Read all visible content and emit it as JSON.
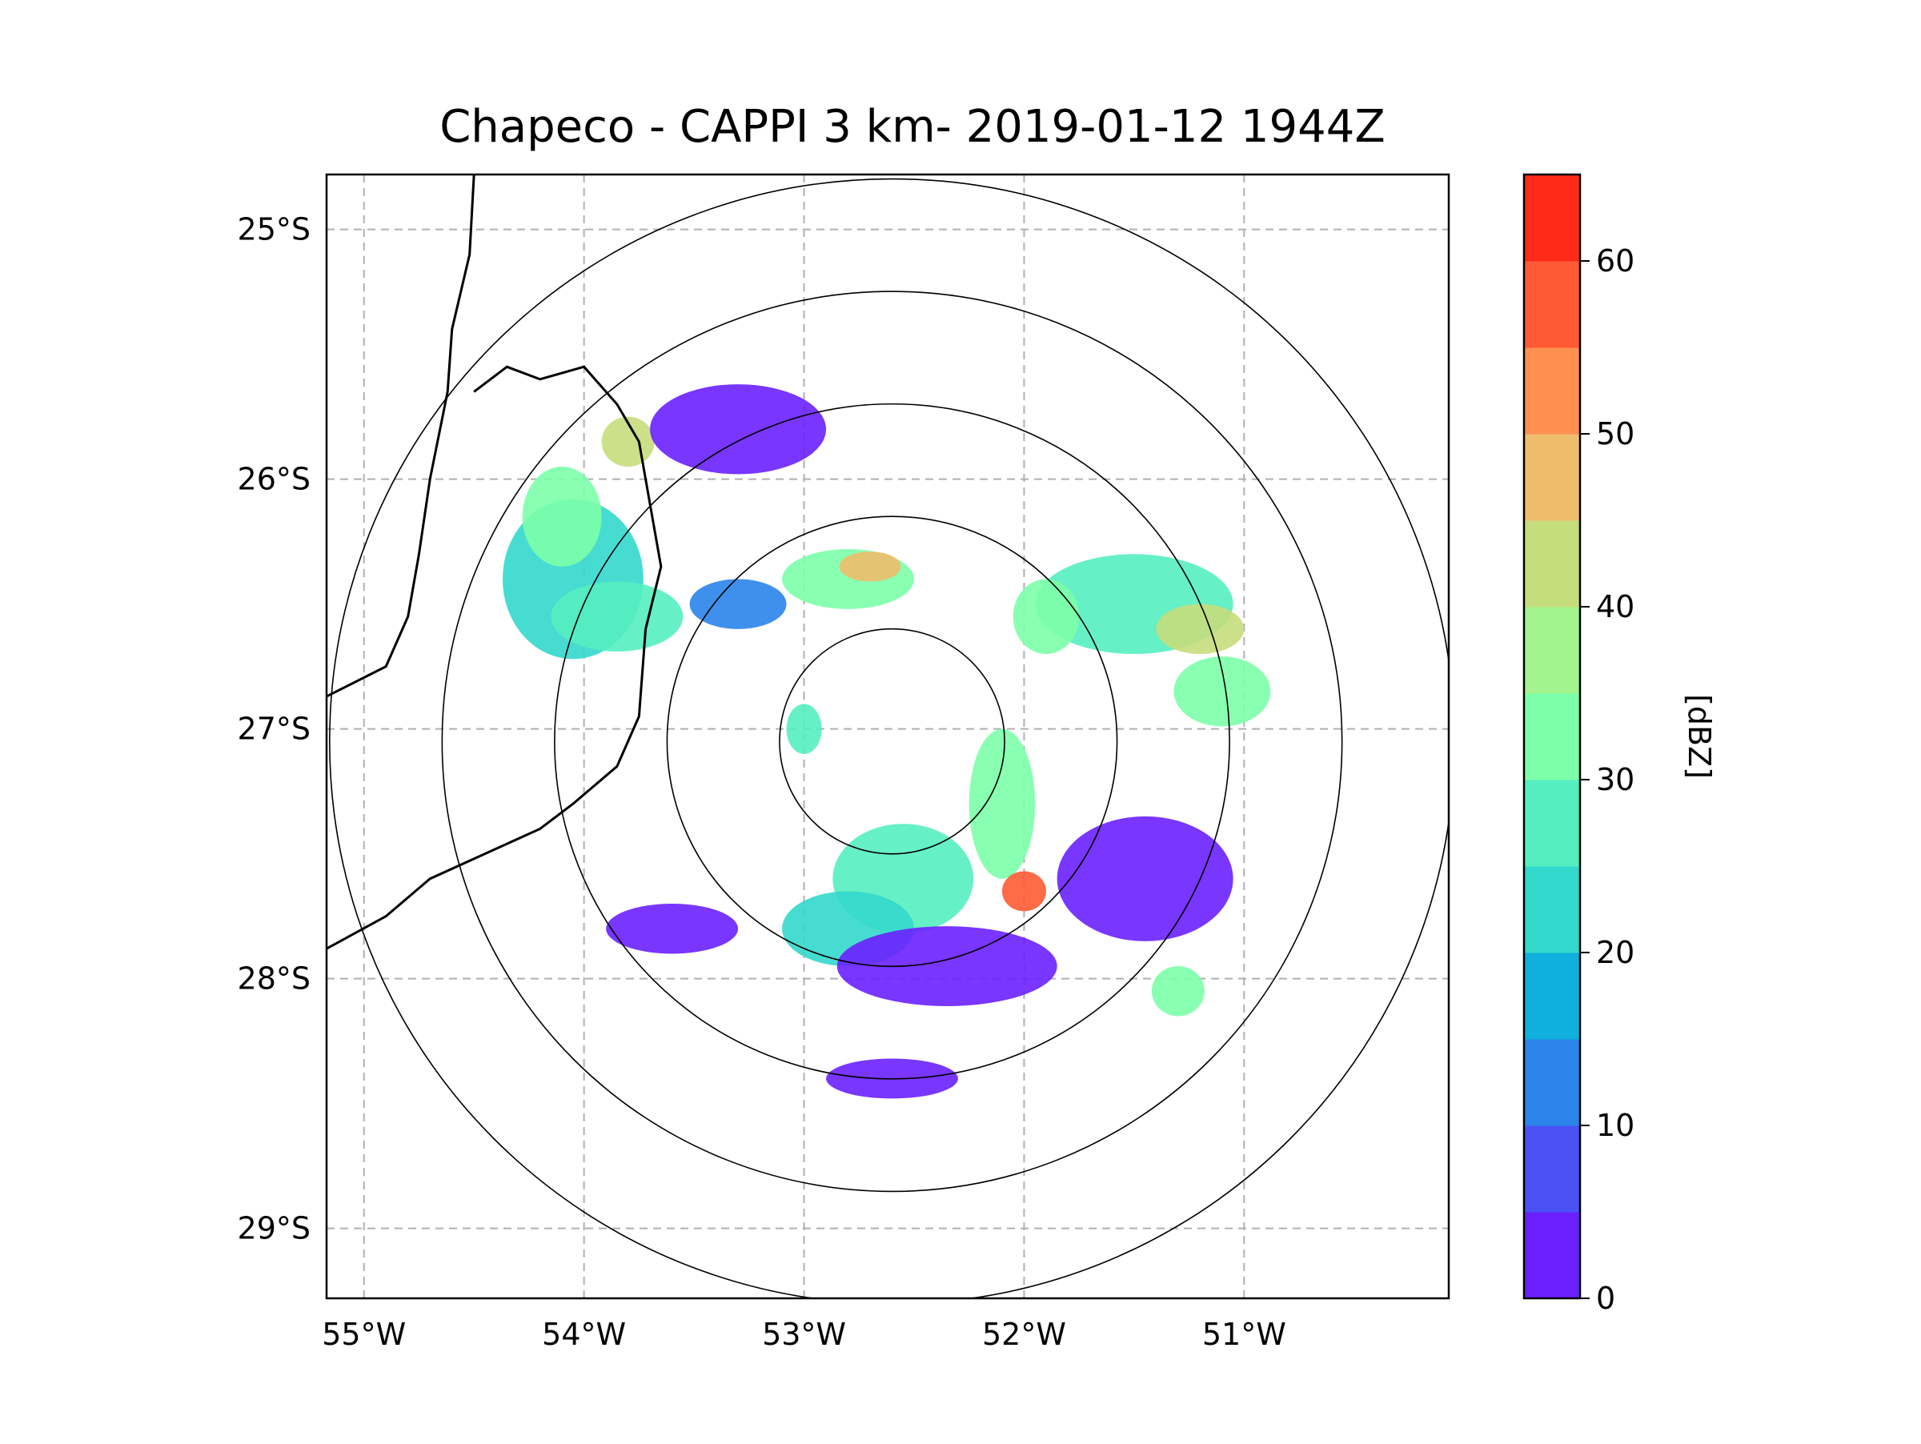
{
  "chart_data": {
    "type": "heatmap",
    "title": "Chapeco - CAPPI 3 km- 2019-01-12 1944Z",
    "radar_site": "Chapeco",
    "product": "CAPPI 3 km",
    "timestamp": "2019-01-12 1944Z",
    "x_ticks": [
      {
        "value": -55,
        "label": "55°W"
      },
      {
        "value": -54,
        "label": "54°W"
      },
      {
        "value": -53,
        "label": "53°W"
      },
      {
        "value": -52,
        "label": "52°W"
      },
      {
        "value": -51,
        "label": "51°W"
      }
    ],
    "y_ticks": [
      {
        "value": -25,
        "label": "25°S"
      },
      {
        "value": -26,
        "label": "26°S"
      },
      {
        "value": -27,
        "label": "27°S"
      },
      {
        "value": -28,
        "label": "28°S"
      },
      {
        "value": -29,
        "label": "29°S"
      }
    ],
    "xlim": [
      -55.17,
      -50.07
    ],
    "ylim": [
      -29.28,
      -24.78
    ],
    "grid": true,
    "radar_center": {
      "lon": -52.6,
      "lat": -27.05
    },
    "range_rings_km": [
      50,
      100,
      150,
      200,
      250
    ],
    "colorbar": {
      "label": "[dBZ]",
      "min": 0,
      "max": 65,
      "step": 5,
      "ticks": [
        0,
        10,
        20,
        30,
        40,
        50,
        60
      ],
      "tick_labels": [
        "0",
        "10",
        "20",
        "30",
        "40",
        "50",
        "60"
      ],
      "colors": [
        "#6a20ff",
        "#4a52f5",
        "#2a84ea",
        "#10b0dd",
        "#33d8cc",
        "#55eec0",
        "#7cffa8",
        "#a2f48e",
        "#c6dd7c",
        "#eebd6c",
        "#ff9050",
        "#ff5a33",
        "#ff2a18"
      ]
    },
    "echo_cells": [
      {
        "lon": -54.05,
        "lat": -26.4,
        "rlon": 0.32,
        "rlat": 0.32,
        "dbz": 22
      },
      {
        "lon": -54.1,
        "lat": -26.15,
        "rlon": 0.18,
        "rlat": 0.2,
        "dbz": 34
      },
      {
        "lon": -53.8,
        "lat": -25.85,
        "rlon": 0.12,
        "rlat": 0.1,
        "dbz": 40
      },
      {
        "lon": -53.85,
        "lat": -26.55,
        "rlon": 0.3,
        "rlat": 0.14,
        "dbz": 28
      },
      {
        "lon": -53.3,
        "lat": -26.5,
        "rlon": 0.22,
        "rlat": 0.1,
        "dbz": 12
      },
      {
        "lon": -53.3,
        "lat": -25.8,
        "rlon": 0.4,
        "rlat": 0.18,
        "dbz": 3
      },
      {
        "lon": -52.8,
        "lat": -26.4,
        "rlon": 0.3,
        "rlat": 0.12,
        "dbz": 30
      },
      {
        "lon": -52.7,
        "lat": -26.35,
        "rlon": 0.14,
        "rlat": 0.06,
        "dbz": 45
      },
      {
        "lon": -51.5,
        "lat": -26.5,
        "rlon": 0.45,
        "rlat": 0.2,
        "dbz": 27
      },
      {
        "lon": -51.2,
        "lat": -26.6,
        "rlon": 0.2,
        "rlat": 0.1,
        "dbz": 42
      },
      {
        "lon": -51.1,
        "lat": -26.85,
        "rlon": 0.22,
        "rlat": 0.14,
        "dbz": 30
      },
      {
        "lon": -51.9,
        "lat": -26.55,
        "rlon": 0.15,
        "rlat": 0.15,
        "dbz": 32
      },
      {
        "lon": -52.1,
        "lat": -27.3,
        "rlon": 0.15,
        "rlat": 0.3,
        "dbz": 30
      },
      {
        "lon": -52.0,
        "lat": -27.65,
        "rlon": 0.1,
        "rlat": 0.08,
        "dbz": 55
      },
      {
        "lon": -52.55,
        "lat": -27.6,
        "rlon": 0.32,
        "rlat": 0.22,
        "dbz": 25
      },
      {
        "lon": -52.8,
        "lat": -27.8,
        "rlon": 0.3,
        "rlat": 0.15,
        "dbz": 22
      },
      {
        "lon": -52.35,
        "lat": -27.95,
        "rlon": 0.5,
        "rlat": 0.16,
        "dbz": 3
      },
      {
        "lon": -51.45,
        "lat": -27.6,
        "rlon": 0.4,
        "rlat": 0.25,
        "dbz": 4
      },
      {
        "lon": -51.3,
        "lat": -28.05,
        "rlon": 0.12,
        "rlat": 0.1,
        "dbz": 30
      },
      {
        "lon": -53.0,
        "lat": -27.0,
        "rlon": 0.08,
        "rlat": 0.1,
        "dbz": 25
      },
      {
        "lon": -53.6,
        "lat": -27.8,
        "rlon": 0.3,
        "rlat": 0.1,
        "dbz": 3
      },
      {
        "lon": -52.6,
        "lat": -28.4,
        "rlon": 0.3,
        "rlat": 0.08,
        "dbz": 3
      }
    ]
  }
}
